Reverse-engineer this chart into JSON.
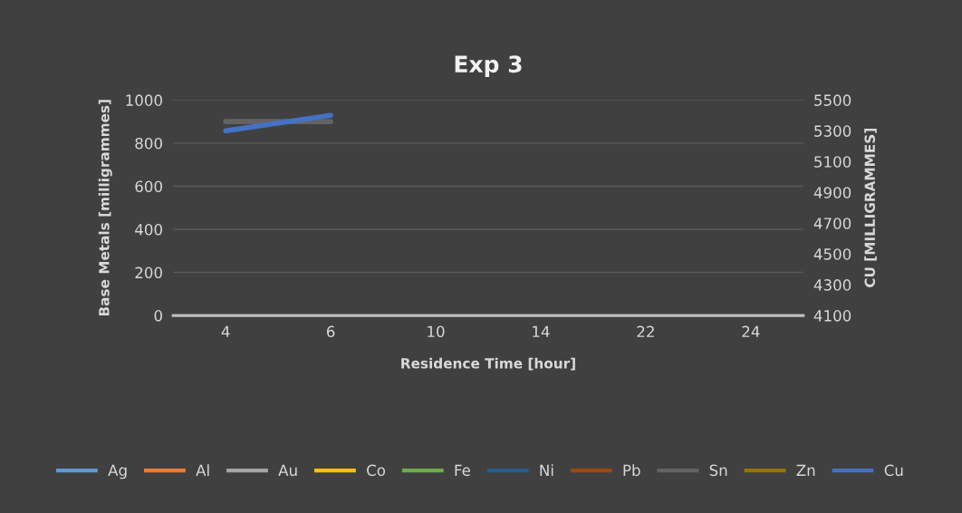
{
  "chart_data": {
    "type": "line",
    "title": "Exp 3",
    "xlabel": "Residence Time [hour]",
    "ylabel": "Base Metals [milligrammes]",
    "y2label": "CU [MILLIGRAMMES]",
    "categories": [
      "4",
      "6",
      "10",
      "14",
      "22",
      "24"
    ],
    "series": [
      {
        "name": "Ag",
        "color": "#5b9bd5",
        "values": [
          null,
          null,
          null,
          null,
          null,
          null
        ]
      },
      {
        "name": "Al",
        "color": "#ed7d31",
        "values": [
          null,
          null,
          null,
          null,
          null,
          null
        ]
      },
      {
        "name": "Au",
        "color": "#a5a5a5",
        "values": [
          null,
          null,
          null,
          null,
          null,
          null
        ]
      },
      {
        "name": "Co",
        "color": "#ffc000",
        "values": [
          null,
          null,
          null,
          null,
          null,
          null
        ]
      },
      {
        "name": "Fe",
        "color": "#70ad47",
        "values": [
          null,
          null,
          null,
          null,
          null,
          null
        ]
      },
      {
        "name": "Ni",
        "color": "#255e91",
        "values": [
          null,
          null,
          null,
          null,
          null,
          null
        ]
      },
      {
        "name": "Pb",
        "color": "#9e480e",
        "values": [
          null,
          null,
          null,
          null,
          null,
          null
        ]
      },
      {
        "name": "Sn",
        "color": "#636363",
        "values": [
          900,
          900,
          null,
          null,
          null,
          null
        ]
      },
      {
        "name": "Zn",
        "color": "#997300",
        "values": [
          null,
          null,
          null,
          null,
          null,
          null
        ]
      },
      {
        "name": "Cu",
        "color": "#4472c4",
        "axis": "y2",
        "values": [
          5300,
          5400,
          null,
          null,
          null,
          null
        ]
      }
    ],
    "ylim": [
      0,
      1000
    ],
    "yticks": [
      0,
      200,
      400,
      600,
      800,
      1000
    ],
    "y2lim": [
      4100,
      5500
    ],
    "y2ticks": [
      4100,
      4300,
      4500,
      4700,
      4900,
      5100,
      5300,
      5500
    ],
    "grid": "y",
    "legend": "bottom",
    "line_style": "solid",
    "marker": "none"
  }
}
